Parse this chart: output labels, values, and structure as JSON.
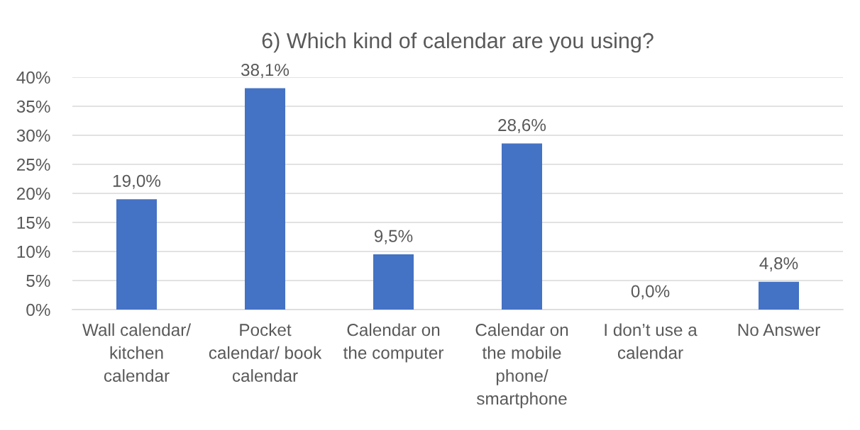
{
  "chart_data": {
    "type": "bar",
    "title": "6) Which kind of calendar are you using?",
    "categories": [
      "Wall calendar/\nkitchen\ncalendar",
      "Pocket\ncalendar/ book\ncalendar",
      "Calendar on\nthe computer",
      "Calendar on\nthe mobile\nphone/\nsmartphone",
      "I don’t use a\ncalendar",
      "No Answer"
    ],
    "values": [
      19.0,
      38.1,
      9.5,
      28.6,
      0.0,
      4.8
    ],
    "value_labels": [
      "19,0%",
      "38,1%",
      "9,5%",
      "28,6%",
      "0,0%",
      "4,8%"
    ],
    "color": "#4472c4",
    "ylim": [
      0,
      40
    ],
    "yticks": [
      {
        "value": 0,
        "label": "0%"
      },
      {
        "value": 5,
        "label": "5%"
      },
      {
        "value": 10,
        "label": "10%"
      },
      {
        "value": 15,
        "label": "15%"
      },
      {
        "value": 20,
        "label": "20%"
      },
      {
        "value": 25,
        "label": "25%"
      },
      {
        "value": 30,
        "label": "30%"
      },
      {
        "value": 35,
        "label": "35%"
      },
      {
        "value": 40,
        "label": "40%"
      }
    ],
    "grid": "y"
  }
}
